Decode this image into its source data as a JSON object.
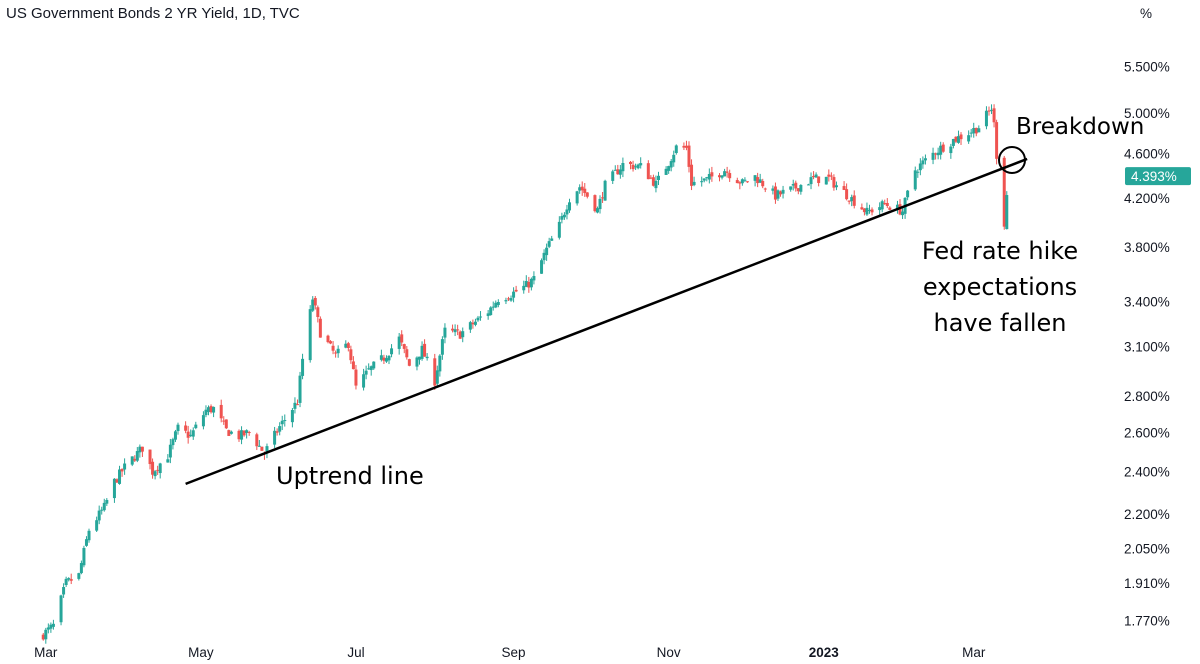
{
  "chart_title": "US Government Bonds 2 YR Yield, 1D, TVC",
  "colors": {
    "up": "#26a69a",
    "down": "#ef5350",
    "price_label_bg": "#26a69a"
  },
  "chart_data": {
    "type": "candlestick",
    "title": "US Government Bonds 2 YR Yield, 1D, TVC",
    "y_scale": "log",
    "y_unit": "%",
    "ylim": [
      1.7,
      5.9
    ],
    "y_ticks": [
      "5.500%",
      "5.000%",
      "4.600%",
      "4.200%",
      "3.800%",
      "3.400%",
      "3.100%",
      "2.800%",
      "2.600%",
      "2.400%",
      "2.200%",
      "2.050%",
      "1.910%",
      "1.770%"
    ],
    "y_tick_values": [
      5.5,
      5.0,
      4.6,
      4.2,
      3.8,
      3.4,
      3.1,
      2.8,
      2.6,
      2.4,
      2.2,
      2.05,
      1.91,
      1.77
    ],
    "x_ticks": [
      "Mar",
      "May",
      "Jul",
      "Sep",
      "Nov",
      "2023",
      "Mar"
    ],
    "x_tick_dates": [
      "2022-03-01",
      "2022-05-01",
      "2022-07-01",
      "2022-09-01",
      "2022-11-01",
      "2023-01-01",
      "2023-03-01"
    ],
    "x_range": [
      "2022-02-22",
      "2023-03-31"
    ],
    "current_price_label": "4.393%",
    "current_price": 4.393,
    "close_path": [
      [
        "2022-02-28",
        1.72
      ],
      [
        "2022-03-04",
        1.75
      ],
      [
        "2022-03-09",
        1.91
      ],
      [
        "2022-03-14",
        1.94
      ],
      [
        "2022-03-18",
        2.13
      ],
      [
        "2022-03-24",
        2.23
      ],
      [
        "2022-03-28",
        2.35
      ],
      [
        "2022-04-01",
        2.42
      ],
      [
        "2022-04-06",
        2.49
      ],
      [
        "2022-04-08",
        2.52
      ],
      [
        "2022-04-12",
        2.4
      ],
      [
        "2022-04-18",
        2.48
      ],
      [
        "2022-04-22",
        2.62
      ],
      [
        "2022-04-27",
        2.58
      ],
      [
        "2022-05-03",
        2.72
      ],
      [
        "2022-05-06",
        2.73
      ],
      [
        "2022-05-11",
        2.61
      ],
      [
        "2022-05-16",
        2.58
      ],
      [
        "2022-05-20",
        2.6
      ],
      [
        "2022-05-26",
        2.49
      ],
      [
        "2022-06-01",
        2.63
      ],
      [
        "2022-06-08",
        2.77
      ],
      [
        "2022-06-10",
        3.02
      ],
      [
        "2022-06-14",
        3.42
      ],
      [
        "2022-06-17",
        3.19
      ],
      [
        "2022-06-23",
        3.04
      ],
      [
        "2022-06-28",
        3.12
      ],
      [
        "2022-07-01",
        2.85
      ],
      [
        "2022-07-06",
        2.95
      ],
      [
        "2022-07-12",
        3.03
      ],
      [
        "2022-07-18",
        3.15
      ],
      [
        "2022-07-22",
        2.98
      ],
      [
        "2022-07-27",
        3.08
      ],
      [
        "2022-08-01",
        2.89
      ],
      [
        "2022-08-05",
        3.2
      ],
      [
        "2022-08-11",
        3.18
      ],
      [
        "2022-08-17",
        3.26
      ],
      [
        "2022-08-22",
        3.33
      ],
      [
        "2022-08-26",
        3.42
      ],
      [
        "2022-08-31",
        3.45
      ],
      [
        "2022-09-06",
        3.51
      ],
      [
        "2022-09-09",
        3.56
      ],
      [
        "2022-09-14",
        3.78
      ],
      [
        "2022-09-19",
        3.97
      ],
      [
        "2022-09-23",
        4.2
      ],
      [
        "2022-09-27",
        4.3
      ],
      [
        "2022-09-30",
        4.22
      ],
      [
        "2022-10-04",
        4.1
      ],
      [
        "2022-10-07",
        4.31
      ],
      [
        "2022-10-14",
        4.5
      ],
      [
        "2022-10-21",
        4.48
      ],
      [
        "2022-10-27",
        4.32
      ],
      [
        "2022-11-01",
        4.52
      ],
      [
        "2022-11-04",
        4.66
      ],
      [
        "2022-11-08",
        4.65
      ],
      [
        "2022-11-10",
        4.33
      ],
      [
        "2022-11-16",
        4.36
      ],
      [
        "2022-11-23",
        4.45
      ],
      [
        "2022-11-30",
        4.33
      ],
      [
        "2022-12-05",
        4.39
      ],
      [
        "2022-12-13",
        4.22
      ],
      [
        "2022-12-19",
        4.27
      ],
      [
        "2022-12-28",
        4.37
      ],
      [
        "2023-01-03",
        4.37
      ],
      [
        "2023-01-09",
        4.25
      ],
      [
        "2023-01-18",
        4.08
      ],
      [
        "2023-01-25",
        4.15
      ],
      [
        "2023-02-01",
        4.09
      ],
      [
        "2023-02-06",
        4.45
      ],
      [
        "2023-02-14",
        4.62
      ],
      [
        "2023-02-21",
        4.73
      ],
      [
        "2023-02-27",
        4.8
      ],
      [
        "2023-03-03",
        4.86
      ],
      [
        "2023-03-08",
        5.05
      ],
      [
        "2023-03-09",
        4.88
      ],
      [
        "2023-03-10",
        4.59
      ],
      [
        "2023-03-13",
        3.99
      ],
      [
        "2023-03-14",
        4.23
      ]
    ],
    "trendline": {
      "start": [
        "2022-04-25",
        2.34
      ],
      "end": [
        "2023-03-22",
        4.55
      ]
    }
  },
  "annotations": {
    "uptrend_line": "Uptrend line",
    "breakdown": "Breakdown",
    "fed_line1": "Fed rate hike",
    "fed_line2": "expectations",
    "fed_line3": "have fallen"
  }
}
